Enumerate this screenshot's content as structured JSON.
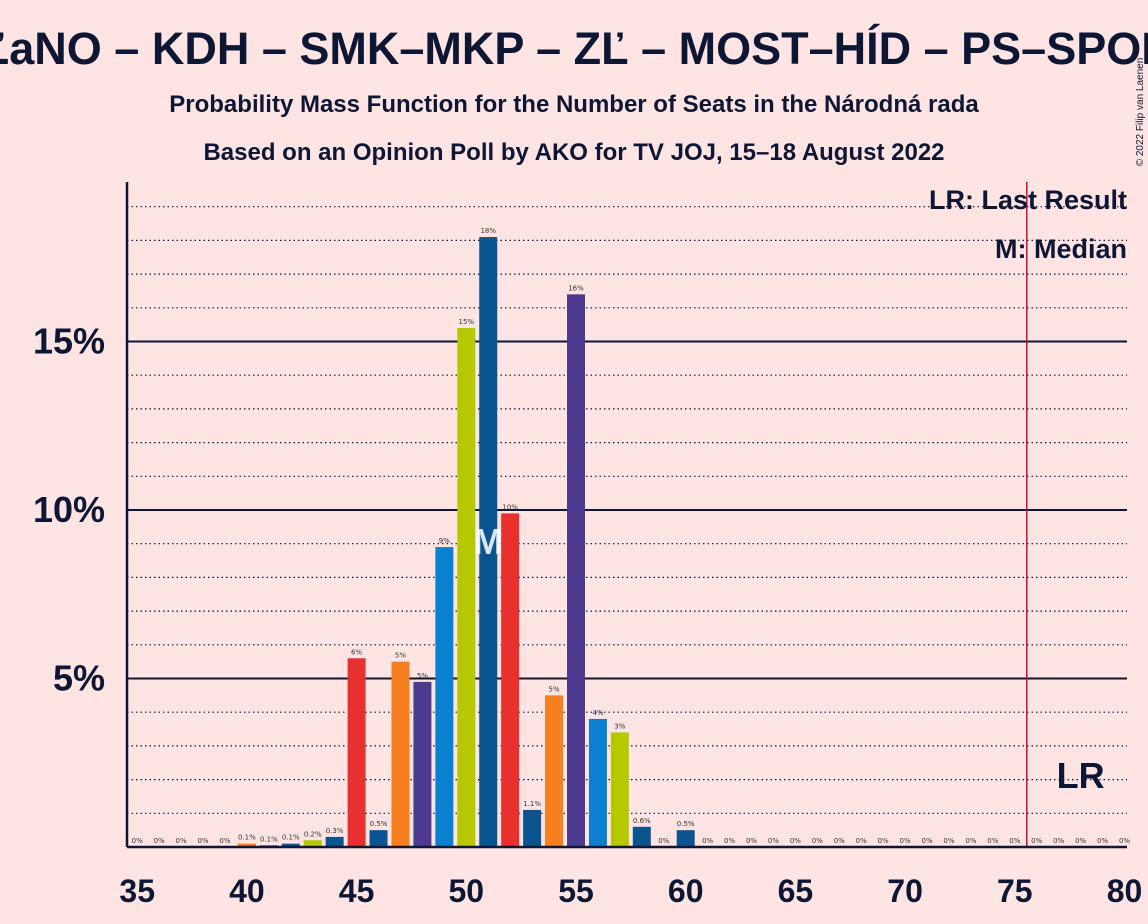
{
  "chart_data": {
    "type": "bar",
    "title": "OĽaNO – KDH – SMK–MKP – ZĽ – MOST–HÍD – PS–SPOLU",
    "subtitle1": "Probability Mass Function for the Number of Seats in the Národná rada",
    "subtitle2": "Based on an Opinion Poll by AKO for TV JOJ, 15–18 August 2022",
    "copyright": "© 2022 Filip van Laenen",
    "legend": {
      "lr": "LR: Last Result",
      "m": "M: Median"
    },
    "xlim": [
      35,
      80
    ],
    "ylim": [
      0,
      19
    ],
    "x_ticks": [
      35,
      40,
      45,
      50,
      55,
      60,
      65,
      70,
      75,
      80
    ],
    "y_ticks": [
      {
        "value": 5,
        "label": "5%"
      },
      {
        "value": 10,
        "label": "10%"
      },
      {
        "value": 15,
        "label": "15%"
      }
    ],
    "median_seat": 51,
    "median_label": "M",
    "last_result_seat": 76,
    "last_result_label": "LR",
    "colors": {
      "background": "#FFE4E4",
      "text": "#0D1633",
      "last_result_line": "#C8102E",
      "red": "#E8312F",
      "orange": "#F77F20",
      "purple": "#4B3A8F",
      "blue": "#0B80D0",
      "lime": "#B5C800",
      "navy": "#0A5490"
    },
    "series": [
      {
        "x": 35,
        "value": 0,
        "label": "0%",
        "color": "#0A5490"
      },
      {
        "x": 36,
        "value": 0,
        "label": "0%",
        "color": "#E8312F"
      },
      {
        "x": 37,
        "value": 0,
        "label": "0%",
        "color": "#0B80D0"
      },
      {
        "x": 38,
        "value": 0,
        "label": "0%",
        "color": "#B5C800"
      },
      {
        "x": 39,
        "value": 0,
        "label": "0%",
        "color": "#0A5490"
      },
      {
        "x": 40,
        "value": 0.1,
        "label": "0.1%",
        "color": "#F77F20"
      },
      {
        "x": 41,
        "value": 0.05,
        "label": "0.1%",
        "color": "#4B3A8F"
      },
      {
        "x": 42,
        "value": 0.1,
        "label": "0.1%",
        "color": "#0A5490"
      },
      {
        "x": 43,
        "value": 0.2,
        "label": "0.2%",
        "color": "#B5C800"
      },
      {
        "x": 44,
        "value": 0.3,
        "label": "0.3%",
        "color": "#0A5490"
      },
      {
        "x": 45,
        "value": 5.6,
        "label": "6%",
        "color": "#E8312F"
      },
      {
        "x": 46,
        "value": 0.5,
        "label": "0.5%",
        "color": "#0A5490"
      },
      {
        "x": 47,
        "value": 5.5,
        "label": "5%",
        "color": "#F77F20"
      },
      {
        "x": 48,
        "value": 4.9,
        "label": "5%",
        "color": "#4B3A8F"
      },
      {
        "x": 49,
        "value": 8.9,
        "label": "9%",
        "color": "#0B80D0"
      },
      {
        "x": 50,
        "value": 15.4,
        "label": "15%",
        "color": "#B5C800"
      },
      {
        "x": 51,
        "value": 18.1,
        "label": "18%",
        "color": "#0A5490"
      },
      {
        "x": 52,
        "value": 9.9,
        "label": "10%",
        "color": "#E8312F"
      },
      {
        "x": 53,
        "value": 1.1,
        "label": "1.1%",
        "color": "#0A5490"
      },
      {
        "x": 54,
        "value": 4.5,
        "label": "5%",
        "color": "#F77F20"
      },
      {
        "x": 55,
        "value": 16.4,
        "label": "16%",
        "color": "#4B3A8F"
      },
      {
        "x": 56,
        "value": 3.8,
        "label": "4%",
        "color": "#0B80D0"
      },
      {
        "x": 57,
        "value": 3.4,
        "label": "3%",
        "color": "#B5C800"
      },
      {
        "x": 58,
        "value": 0.6,
        "label": "0.6%",
        "color": "#0A5490"
      },
      {
        "x": 59,
        "value": 0,
        "label": "0%",
        "color": "#E8312F"
      },
      {
        "x": 60,
        "value": 0.5,
        "label": "0.5%",
        "color": "#0A5490"
      },
      {
        "x": 61,
        "value": 0,
        "label": "0%",
        "color": "#0A5490"
      },
      {
        "x": 62,
        "value": 0,
        "label": "0%",
        "color": "#0A5490"
      },
      {
        "x": 63,
        "value": 0,
        "label": "0%",
        "color": "#0A5490"
      },
      {
        "x": 64,
        "value": 0,
        "label": "0%",
        "color": "#0A5490"
      },
      {
        "x": 65,
        "value": 0,
        "label": "0%",
        "color": "#0A5490"
      },
      {
        "x": 66,
        "value": 0,
        "label": "0%",
        "color": "#0A5490"
      },
      {
        "x": 67,
        "value": 0,
        "label": "0%",
        "color": "#0A5490"
      },
      {
        "x": 68,
        "value": 0,
        "label": "0%",
        "color": "#0A5490"
      },
      {
        "x": 69,
        "value": 0,
        "label": "0%",
        "color": "#0A5490"
      },
      {
        "x": 70,
        "value": 0,
        "label": "0%",
        "color": "#0A5490"
      },
      {
        "x": 71,
        "value": 0,
        "label": "0%",
        "color": "#0A5490"
      },
      {
        "x": 72,
        "value": 0,
        "label": "0%",
        "color": "#0A5490"
      },
      {
        "x": 73,
        "value": 0,
        "label": "0%",
        "color": "#0A5490"
      },
      {
        "x": 74,
        "value": 0,
        "label": "0%",
        "color": "#0A5490"
      },
      {
        "x": 75,
        "value": 0,
        "label": "0%",
        "color": "#0A5490"
      },
      {
        "x": 76,
        "value": 0,
        "label": "0%",
        "color": "#0A5490"
      },
      {
        "x": 77,
        "value": 0,
        "label": "0%",
        "color": "#0A5490"
      },
      {
        "x": 78,
        "value": 0,
        "label": "0%",
        "color": "#0A5490"
      },
      {
        "x": 79,
        "value": 0,
        "label": "0%",
        "color": "#0A5490"
      },
      {
        "x": 80,
        "value": 0,
        "label": "0%",
        "color": "#0A5490"
      }
    ]
  }
}
